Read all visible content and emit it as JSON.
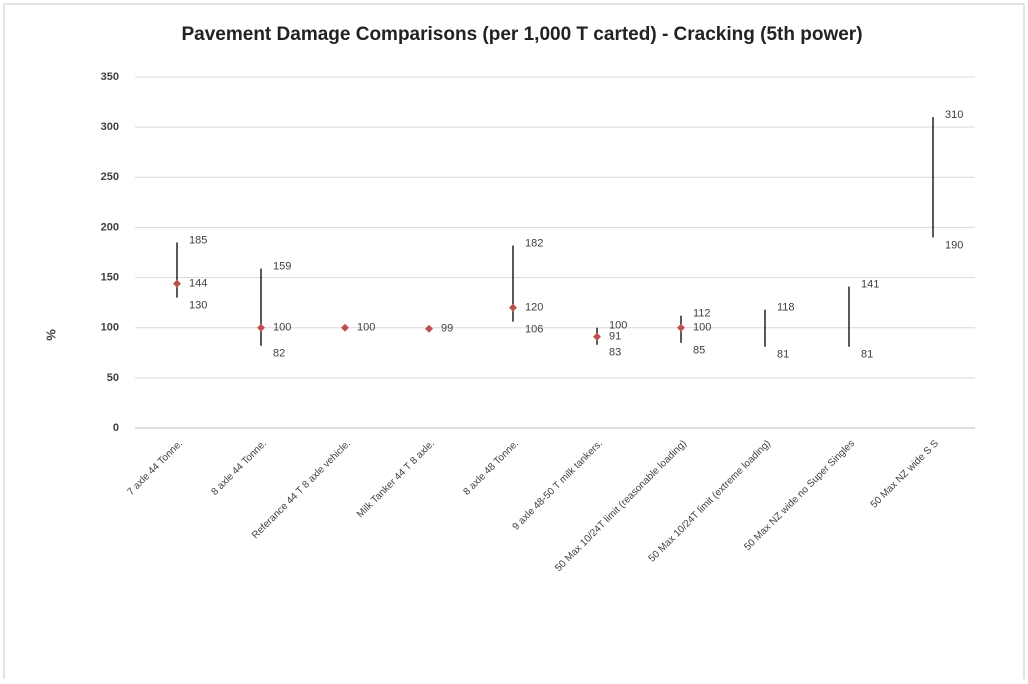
{
  "chart_data": {
    "type": "hilo",
    "title": "Pavement Damage Comparisons (per 1,000 T carted) - Cracking (5th power)",
    "y_label": "%",
    "categories": [
      "7 axle 44 Tonne.",
      "8 axle 44 Tonne.",
      "Referance 44 T 8 axle vehicle.",
      "Milk Tanker 44 T 8 axle.",
      "8 axle 48 Tonne.",
      "9 axle 48-50 T milk tankers.",
      "50 Max 10/24T limit (reasonable loading)",
      "50 Max 10/24T limit (extreme loading)",
      "50 Max NZ wide no Super Singles",
      "50 Max NZ wide S S"
    ],
    "highs": [
      185,
      159,
      null,
      null,
      182,
      100,
      112,
      118,
      141,
      310
    ],
    "lows": [
      130,
      82,
      null,
      null,
      106,
      83,
      85,
      81,
      81,
      190
    ],
    "points": [
      144,
      100,
      100,
      99,
      120,
      91,
      100,
      null,
      null,
      null
    ],
    "line_color": "#000000",
    "point_color": "#c0504d",
    "ylim": [
      0,
      350
    ],
    "yticks": [
      0,
      50,
      100,
      150,
      200,
      250,
      300,
      350
    ],
    "grid": true
  }
}
